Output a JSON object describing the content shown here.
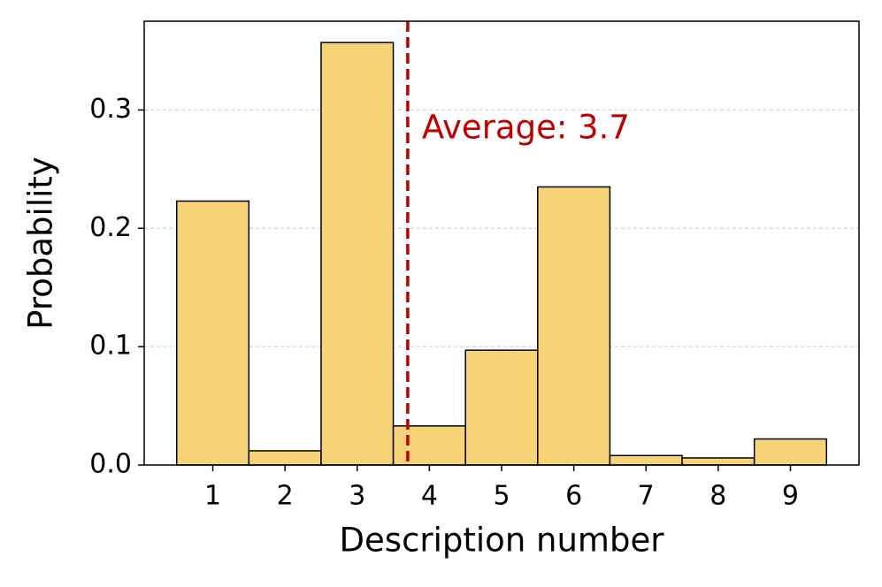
{
  "chart_data": {
    "type": "histogram",
    "xlabel": "Description number",
    "ylabel": "Probability",
    "bins": [
      0.5,
      1.5,
      2.5,
      3.5,
      4.5,
      5.5,
      6.5,
      7.5,
      8.5,
      9.5
    ],
    "counts": [
      0.223,
      0.012,
      0.357,
      0.033,
      0.097,
      0.235,
      0.008,
      0.006,
      0.022
    ],
    "color": "#f7d377",
    "edgecolor": "#000000",
    "xlim": [
      0.05,
      9.95
    ],
    "xticks": [
      1,
      2,
      3,
      4,
      5,
      6,
      7,
      8,
      9
    ],
    "ylim": [
      0,
      0.375
    ],
    "yticks": [
      {
        "value": 0,
        "label": "0.0"
      },
      0.1,
      0.2,
      0.3
    ],
    "grid": "y",
    "average": {
      "value": 3.7,
      "label": "Average: 3.7",
      "color": "#c00000"
    }
  }
}
